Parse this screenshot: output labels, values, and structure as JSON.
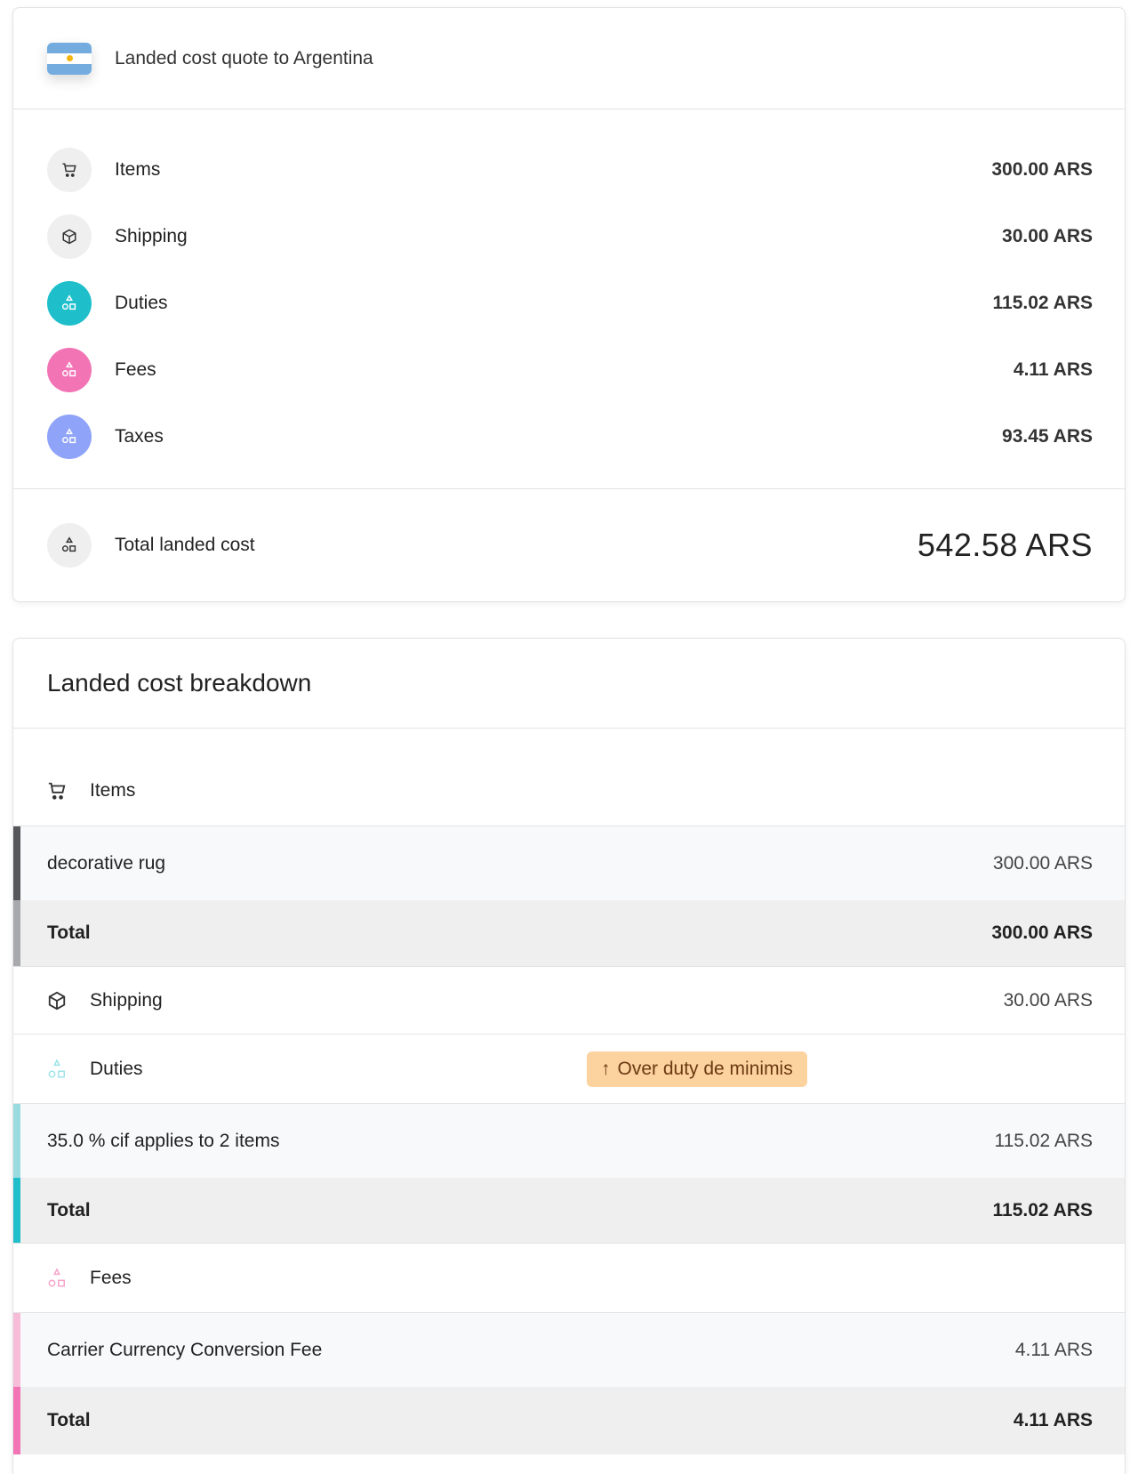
{
  "quote": {
    "title": "Landed cost quote to Argentina",
    "flag": "argentina-flag",
    "rows": [
      {
        "label": "Items",
        "value": "300.00 ARS",
        "icon": "cart-icon",
        "color": "#efefef"
      },
      {
        "label": "Shipping",
        "value": "30.00 ARS",
        "icon": "box-icon",
        "color": "#efefef"
      },
      {
        "label": "Duties",
        "value": "115.02 ARS",
        "icon": "shapes-icon",
        "color": "#1ebfcb"
      },
      {
        "label": "Fees",
        "value": "4.11 ARS",
        "icon": "shapes-icon",
        "color": "#f274b5"
      },
      {
        "label": "Taxes",
        "value": "93.45 ARS",
        "icon": "shapes-icon",
        "color": "#8fa3f8"
      }
    ],
    "total_label": "Total landed cost",
    "total_value": "542.58 ARS"
  },
  "breakdown": {
    "title": "Landed cost breakdown",
    "items": {
      "label": "Items",
      "line": "decorative rug",
      "line_value": "300.00 ARS",
      "total_label": "Total",
      "total_value": "300.00 ARS"
    },
    "shipping": {
      "label": "Shipping",
      "value": "30.00 ARS"
    },
    "duties": {
      "label": "Duties",
      "badge": "Over duty de minimis",
      "line": "35.0 % cif applies to 2 items",
      "line_value": "115.02 ARS",
      "total_label": "Total",
      "total_value": "115.02 ARS"
    },
    "fees": {
      "label": "Fees",
      "line": "Carrier Currency Conversion Fee",
      "line_value": "4.11 ARS",
      "total_label": "Total",
      "total_value": "4.11 ARS"
    }
  }
}
